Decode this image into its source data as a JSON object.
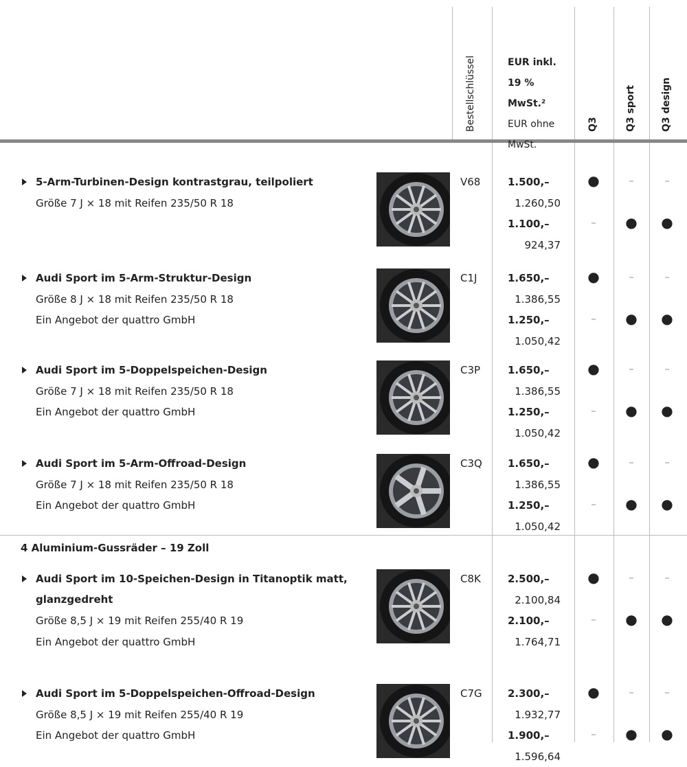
{
  "header": {
    "code_label": "Bestellschlüssel",
    "gross_label": "EUR inkl. 19 % MwSt.²",
    "net_label": "EUR ohne MwSt.",
    "models": [
      "Q3",
      "Q3 sport",
      "Q3 design"
    ]
  },
  "groups": [
    {
      "rows": [
        {
          "title": "5-Arm-Turbinen-Design kontrastgrau, teilpoliert",
          "details": [
            "Größe 7 J × 18 mit Reifen 235/50 R 18"
          ],
          "code": "V68",
          "prices": [
            {
              "gross": "1.500,–",
              "net": "1.260,50"
            },
            {
              "gross": "1.100,–",
              "net": "924,37"
            }
          ],
          "availability": [
            [
              "●",
              "–",
              "–"
            ],
            [
              "–",
              "●",
              "●"
            ]
          ]
        },
        {
          "title": "Audi Sport im 5-Arm-Struktur-Design",
          "details": [
            "Größe 8 J × 18 mit Reifen 235/50 R 18",
            "Ein Angebot der quattro GmbH"
          ],
          "code": "C1J",
          "prices": [
            {
              "gross": "1.650,–",
              "net": "1.386,55"
            },
            {
              "gross": "1.250,–",
              "net": "1.050,42"
            }
          ],
          "availability": [
            [
              "●",
              "–",
              "–"
            ],
            [
              "–",
              "●",
              "●"
            ]
          ]
        },
        {
          "title": "Audi Sport im 5-Doppelspeichen-Design",
          "details": [
            "Größe 7 J × 18 mit Reifen 235/50 R 18",
            "Ein Angebot der quattro GmbH"
          ],
          "code": "C3P",
          "prices": [
            {
              "gross": "1.650,–",
              "net": "1.386,55"
            },
            {
              "gross": "1.250,–",
              "net": "1.050,42"
            }
          ],
          "availability": [
            [
              "●",
              "–",
              "–"
            ],
            [
              "–",
              "●",
              "●"
            ]
          ]
        },
        {
          "title": "Audi Sport im 5-Arm-Offroad-Design",
          "details": [
            "Größe 7 J × 18 mit Reifen 235/50 R 18",
            "Ein Angebot der quattro GmbH"
          ],
          "code": "C3Q",
          "prices": [
            {
              "gross": "1.650,–",
              "net": "1.386,55"
            },
            {
              "gross": "1.250,–",
              "net": "1.050,42"
            }
          ],
          "availability": [
            [
              "●",
              "–",
              "–"
            ],
            [
              "–",
              "●",
              "●"
            ]
          ]
        }
      ]
    },
    {
      "heading": "4 Aluminium-Gussräder – 19 Zoll",
      "rows": [
        {
          "title": "Audi Sport im 10-Speichen-Design in Titanoptik matt, glanzgedreht",
          "details": [
            "Größe 8,5 J × 19 mit Reifen 255/40 R 19",
            "Ein Angebot der quattro GmbH"
          ],
          "code": "C8K",
          "prices": [
            {
              "gross": "2.500,–",
              "net": "2.100,84"
            },
            {
              "gross": "2.100,–",
              "net": "1.764,71"
            }
          ],
          "availability": [
            [
              "●",
              "–",
              "–"
            ],
            [
              "–",
              "●",
              "●"
            ]
          ]
        },
        {
          "title": "Audi Sport im 5-Doppelspeichen-Offroad-Design",
          "details": [
            "Größe 8,5 J × 19 mit Reifen 255/40 R 19",
            "Ein Angebot der quattro GmbH"
          ],
          "code": "C7G",
          "prices": [
            {
              "gross": "2.300,–",
              "net": "1.932,77"
            },
            {
              "gross": "1.900,–",
              "net": "1.596,64"
            }
          ],
          "availability": [
            [
              "●",
              "–",
              "–"
            ],
            [
              "–",
              "●",
              "●"
            ]
          ]
        }
      ]
    }
  ]
}
